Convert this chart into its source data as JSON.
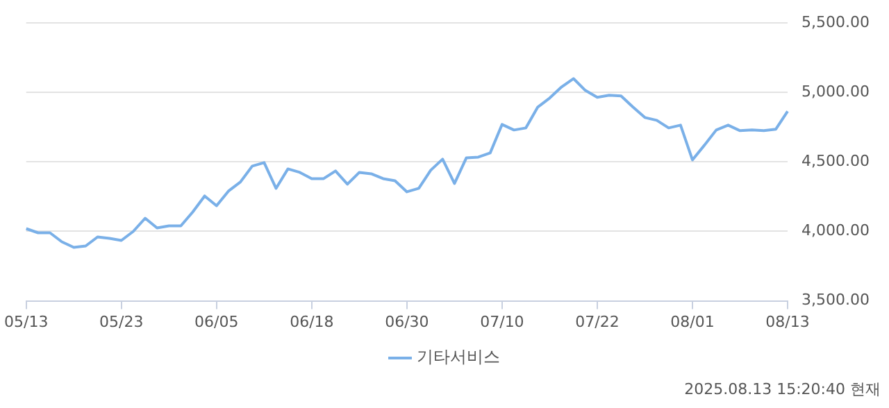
{
  "chart_data": {
    "type": "line",
    "categories": [
      "05/13",
      null,
      null,
      null,
      null,
      null,
      null,
      null,
      "05/23",
      null,
      null,
      null,
      null,
      null,
      null,
      null,
      "06/05",
      null,
      null,
      null,
      null,
      null,
      null,
      null,
      "06/18",
      null,
      null,
      null,
      null,
      null,
      null,
      null,
      "06/30",
      null,
      null,
      null,
      null,
      null,
      null,
      null,
      "07/10",
      null,
      null,
      null,
      null,
      null,
      null,
      null,
      "07/22",
      null,
      null,
      null,
      null,
      null,
      null,
      null,
      "08/01",
      null,
      null,
      null,
      null,
      null,
      null,
      null,
      "08/13"
    ],
    "series": [
      {
        "name": "기타서비스",
        "color": "#7ab0e8",
        "values": [
          4020,
          3990,
          3990,
          3925,
          3885,
          3895,
          3960,
          3950,
          3935,
          4000,
          4095,
          4025,
          4040,
          4040,
          4140,
          4255,
          4185,
          4290,
          4355,
          4470,
          4495,
          4310,
          4450,
          4425,
          4380,
          4380,
          4435,
          4340,
          4425,
          4415,
          4380,
          4365,
          4285,
          4310,
          4440,
          4520,
          4345,
          4530,
          4535,
          4565,
          4770,
          4730,
          4745,
          4895,
          4960,
          5040,
          5100,
          5015,
          4965,
          4980,
          4975,
          4895,
          4820,
          4800,
          4745,
          4765,
          4515,
          4620,
          4730,
          4765,
          4725,
          4730,
          4725,
          4735,
          4865
        ]
      }
    ],
    "ylim": [
      3500,
      5500
    ],
    "yticks": [
      {
        "value": 3500,
        "label": "3,500.00"
      },
      {
        "value": 4000,
        "label": "4,000.00"
      },
      {
        "value": 4500,
        "label": "4,500.00"
      },
      {
        "value": 5000,
        "label": "5,000.00"
      },
      {
        "value": 5500,
        "label": "5,500.00"
      }
    ],
    "grid": "y",
    "legend": "bottom",
    "marker": "none",
    "line_style": "solid",
    "annotations": [
      "2025.08.13 15:20:40 현재"
    ]
  }
}
